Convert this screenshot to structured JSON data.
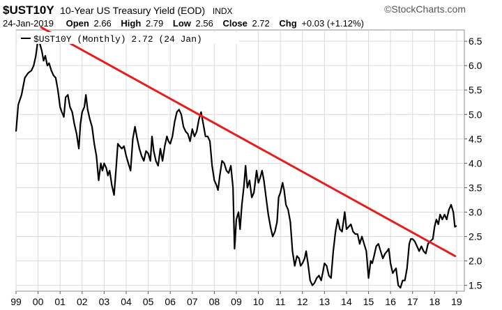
{
  "header": {
    "symbol": "$UST10Y",
    "description": "10-Year US Treasury Yield (EOD)",
    "exchange": "INDX",
    "brand": "StockCharts.com",
    "date": "24-Jan-2019",
    "open_label": "Open",
    "open_value": "2.66",
    "high_label": "High",
    "high_value": "2.79",
    "low_label": "Low",
    "low_value": "2.56",
    "close_label": "Close",
    "close_value": "2.72",
    "chg_label": "Chg",
    "chg_value": "+0.03 (+1.12%)",
    "chg_color": "#000000"
  },
  "legend": {
    "label": "$UST10Y (Monthly) 2.72 (24 Jan)"
  },
  "colors": {
    "price_line": "#000000",
    "trend_line": "#e81e1e",
    "grid": "#d9d9d9",
    "border": "#8c8c8c"
  },
  "chart_data": {
    "type": "line",
    "x_unit": "year",
    "xlim": [
      1999.0,
      2019.35
    ],
    "ylim": [
      1.38,
      6.73
    ],
    "x_ticks": [
      {
        "label": "99",
        "x": 1999.0
      },
      {
        "label": "00",
        "x": 2000.0
      },
      {
        "label": "01",
        "x": 2001.0
      },
      {
        "label": "02",
        "x": 2002.0
      },
      {
        "label": "03",
        "x": 2003.0
      },
      {
        "label": "04",
        "x": 2004.0
      },
      {
        "label": "05",
        "x": 2005.0
      },
      {
        "label": "06",
        "x": 2006.0
      },
      {
        "label": "07",
        "x": 2007.0
      },
      {
        "label": "08",
        "x": 2008.0
      },
      {
        "label": "09",
        "x": 2009.0
      },
      {
        "label": "10",
        "x": 2010.0
      },
      {
        "label": "11",
        "x": 2011.0
      },
      {
        "label": "12",
        "x": 2012.0
      },
      {
        "label": "13",
        "x": 2013.0
      },
      {
        "label": "14",
        "x": 2014.0
      },
      {
        "label": "15",
        "x": 2015.0
      },
      {
        "label": "16",
        "x": 2016.0
      },
      {
        "label": "17",
        "x": 2017.0
      },
      {
        "label": "18",
        "x": 2018.0
      },
      {
        "label": "19",
        "x": 2019.0
      }
    ],
    "y_ticks": [
      {
        "label": "6.5",
        "y": 6.5
      },
      {
        "label": "6.0",
        "y": 6.0
      },
      {
        "label": "5.5",
        "y": 5.5
      },
      {
        "label": "5.0",
        "y": 5.0
      },
      {
        "label": "4.5",
        "y": 4.5
      },
      {
        "label": "4.0",
        "y": 4.0
      },
      {
        "label": "3.5",
        "y": 3.5
      },
      {
        "label": "3.0",
        "y": 3.0
      },
      {
        "label": "2.5",
        "y": 2.5
      },
      {
        "label": "2.0",
        "y": 2.0
      },
      {
        "label": "1.5",
        "y": 1.5
      }
    ],
    "grid": true,
    "series": [
      {
        "name": "$UST10Y (Monthly)",
        "points": [
          [
            1999.0,
            4.65
          ],
          [
            1999.1,
            5.2
          ],
          [
            1999.25,
            5.4
          ],
          [
            1999.4,
            5.75
          ],
          [
            1999.55,
            5.85
          ],
          [
            1999.7,
            5.9
          ],
          [
            1999.8,
            6.0
          ],
          [
            1999.9,
            6.2
          ],
          [
            2000.0,
            6.55
          ],
          [
            2000.08,
            6.45
          ],
          [
            2000.17,
            6.3
          ],
          [
            2000.25,
            6.1
          ],
          [
            2000.33,
            6.2
          ],
          [
            2000.42,
            6.0
          ],
          [
            2000.5,
            6.05
          ],
          [
            2000.6,
            5.9
          ],
          [
            2000.7,
            5.8
          ],
          [
            2000.8,
            5.75
          ],
          [
            2000.9,
            5.5
          ],
          [
            2001.0,
            5.15
          ],
          [
            2001.08,
            5.05
          ],
          [
            2001.17,
            4.95
          ],
          [
            2001.25,
            5.35
          ],
          [
            2001.35,
            5.4
          ],
          [
            2001.45,
            5.15
          ],
          [
            2001.55,
            5.05
          ],
          [
            2001.65,
            4.8
          ],
          [
            2001.75,
            4.6
          ],
          [
            2001.85,
            4.3
          ],
          [
            2001.92,
            4.8
          ],
          [
            2002.0,
            5.05
          ],
          [
            2002.1,
            5.15
          ],
          [
            2002.17,
            5.4
          ],
          [
            2002.25,
            5.1
          ],
          [
            2002.35,
            4.9
          ],
          [
            2002.45,
            4.75
          ],
          [
            2002.55,
            4.4
          ],
          [
            2002.65,
            4.15
          ],
          [
            2002.75,
            3.65
          ],
          [
            2002.85,
            4.0
          ],
          [
            2002.92,
            3.85
          ],
          [
            2003.0,
            4.0
          ],
          [
            2003.1,
            3.9
          ],
          [
            2003.17,
            3.75
          ],
          [
            2003.25,
            3.85
          ],
          [
            2003.35,
            3.55
          ],
          [
            2003.45,
            3.35
          ],
          [
            2003.55,
            3.95
          ],
          [
            2003.62,
            4.4
          ],
          [
            2003.7,
            4.35
          ],
          [
            2003.8,
            4.3
          ],
          [
            2003.9,
            4.35
          ],
          [
            2004.0,
            4.15
          ],
          [
            2004.1,
            4.0
          ],
          [
            2004.2,
            3.85
          ],
          [
            2004.3,
            4.5
          ],
          [
            2004.4,
            4.75
          ],
          [
            2004.5,
            4.5
          ],
          [
            2004.6,
            4.3
          ],
          [
            2004.7,
            4.15
          ],
          [
            2004.8,
            4.05
          ],
          [
            2004.9,
            4.25
          ],
          [
            2005.0,
            4.2
          ],
          [
            2005.1,
            4.05
          ],
          [
            2005.17,
            4.55
          ],
          [
            2005.25,
            4.25
          ],
          [
            2005.35,
            4.05
          ],
          [
            2005.45,
            3.95
          ],
          [
            2005.55,
            4.3
          ],
          [
            2005.65,
            4.05
          ],
          [
            2005.75,
            4.35
          ],
          [
            2005.85,
            4.55
          ],
          [
            2005.92,
            4.45
          ],
          [
            2006.0,
            4.4
          ],
          [
            2006.1,
            4.55
          ],
          [
            2006.2,
            4.85
          ],
          [
            2006.3,
            5.05
          ],
          [
            2006.4,
            5.1
          ],
          [
            2006.5,
            5.0
          ],
          [
            2006.6,
            4.75
          ],
          [
            2006.7,
            4.65
          ],
          [
            2006.8,
            4.6
          ],
          [
            2006.9,
            4.45
          ],
          [
            2007.0,
            4.7
          ],
          [
            2007.1,
            4.55
          ],
          [
            2007.2,
            4.65
          ],
          [
            2007.3,
            4.9
          ],
          [
            2007.4,
            5.05
          ],
          [
            2007.5,
            4.8
          ],
          [
            2007.6,
            4.55
          ],
          [
            2007.7,
            4.55
          ],
          [
            2007.8,
            4.45
          ],
          [
            2007.9,
            3.95
          ],
          [
            2008.0,
            3.65
          ],
          [
            2008.1,
            3.55
          ],
          [
            2008.17,
            3.45
          ],
          [
            2008.25,
            3.75
          ],
          [
            2008.35,
            4.05
          ],
          [
            2008.45,
            4.0
          ],
          [
            2008.55,
            3.85
          ],
          [
            2008.65,
            3.8
          ],
          [
            2008.75,
            3.95
          ],
          [
            2008.85,
            3.5
          ],
          [
            2008.92,
            2.25
          ],
          [
            2009.0,
            2.85
          ],
          [
            2009.1,
            3.0
          ],
          [
            2009.17,
            2.65
          ],
          [
            2009.25,
            3.15
          ],
          [
            2009.35,
            3.55
          ],
          [
            2009.42,
            3.95
          ],
          [
            2009.5,
            3.5
          ],
          [
            2009.6,
            3.65
          ],
          [
            2009.7,
            3.3
          ],
          [
            2009.8,
            3.4
          ],
          [
            2009.92,
            3.85
          ],
          [
            2010.0,
            3.6
          ],
          [
            2010.08,
            3.7
          ],
          [
            2010.17,
            3.85
          ],
          [
            2010.25,
            3.65
          ],
          [
            2010.35,
            3.3
          ],
          [
            2010.45,
            2.95
          ],
          [
            2010.55,
            2.7
          ],
          [
            2010.65,
            2.5
          ],
          [
            2010.75,
            2.6
          ],
          [
            2010.85,
            2.8
          ],
          [
            2010.92,
            3.3
          ],
          [
            2011.0,
            3.4
          ],
          [
            2011.1,
            3.6
          ],
          [
            2011.17,
            3.45
          ],
          [
            2011.25,
            3.15
          ],
          [
            2011.35,
            3.05
          ],
          [
            2011.45,
            2.8
          ],
          [
            2011.55,
            2.2
          ],
          [
            2011.65,
            1.9
          ],
          [
            2011.75,
            2.1
          ],
          [
            2011.85,
            2.05
          ],
          [
            2011.92,
            1.9
          ],
          [
            2012.0,
            1.95
          ],
          [
            2012.1,
            2.05
          ],
          [
            2012.17,
            2.2
          ],
          [
            2012.25,
            1.95
          ],
          [
            2012.35,
            1.6
          ],
          [
            2012.45,
            1.5
          ],
          [
            2012.55,
            1.55
          ],
          [
            2012.65,
            1.65
          ],
          [
            2012.75,
            1.7
          ],
          [
            2012.85,
            1.6
          ],
          [
            2012.92,
            1.75
          ],
          [
            2013.0,
            1.95
          ],
          [
            2013.1,
            1.9
          ],
          [
            2013.2,
            1.7
          ],
          [
            2013.3,
            1.65
          ],
          [
            2013.4,
            2.2
          ],
          [
            2013.5,
            2.6
          ],
          [
            2013.6,
            2.85
          ],
          [
            2013.7,
            2.65
          ],
          [
            2013.8,
            2.6
          ],
          [
            2013.92,
            3.0
          ],
          [
            2014.0,
            2.65
          ],
          [
            2014.1,
            2.7
          ],
          [
            2014.2,
            2.75
          ],
          [
            2014.3,
            2.6
          ],
          [
            2014.4,
            2.55
          ],
          [
            2014.5,
            2.55
          ],
          [
            2014.6,
            2.35
          ],
          [
            2014.7,
            2.5
          ],
          [
            2014.8,
            2.35
          ],
          [
            2014.9,
            2.2
          ],
          [
            2015.0,
            1.65
          ],
          [
            2015.1,
            2.0
          ],
          [
            2015.17,
            1.95
          ],
          [
            2015.25,
            2.1
          ],
          [
            2015.35,
            2.3
          ],
          [
            2015.45,
            2.35
          ],
          [
            2015.55,
            2.2
          ],
          [
            2015.65,
            2.05
          ],
          [
            2015.75,
            2.15
          ],
          [
            2015.85,
            2.2
          ],
          [
            2015.92,
            2.25
          ],
          [
            2016.0,
            1.95
          ],
          [
            2016.1,
            1.75
          ],
          [
            2016.17,
            1.8
          ],
          [
            2016.25,
            1.85
          ],
          [
            2016.35,
            1.5
          ],
          [
            2016.45,
            1.45
          ],
          [
            2016.55,
            1.6
          ],
          [
            2016.65,
            1.6
          ],
          [
            2016.75,
            1.85
          ],
          [
            2016.85,
            2.35
          ],
          [
            2016.92,
            2.45
          ],
          [
            2017.0,
            2.45
          ],
          [
            2017.1,
            2.4
          ],
          [
            2017.2,
            2.3
          ],
          [
            2017.3,
            2.2
          ],
          [
            2017.4,
            2.3
          ],
          [
            2017.5,
            2.2
          ],
          [
            2017.6,
            2.15
          ],
          [
            2017.7,
            2.35
          ],
          [
            2017.8,
            2.4
          ],
          [
            2017.92,
            2.45
          ],
          [
            2018.0,
            2.7
          ],
          [
            2018.08,
            2.85
          ],
          [
            2018.17,
            2.75
          ],
          [
            2018.25,
            2.95
          ],
          [
            2018.35,
            2.85
          ],
          [
            2018.45,
            2.95
          ],
          [
            2018.55,
            2.85
          ],
          [
            2018.65,
            3.05
          ],
          [
            2018.75,
            3.15
          ],
          [
            2018.85,
            3.0
          ],
          [
            2018.92,
            2.7
          ],
          [
            2019.0,
            2.72
          ]
        ]
      },
      {
        "name": "Trendline",
        "points": [
          [
            2000.15,
            6.78
          ],
          [
            2018.93,
            2.1
          ]
        ]
      }
    ]
  }
}
